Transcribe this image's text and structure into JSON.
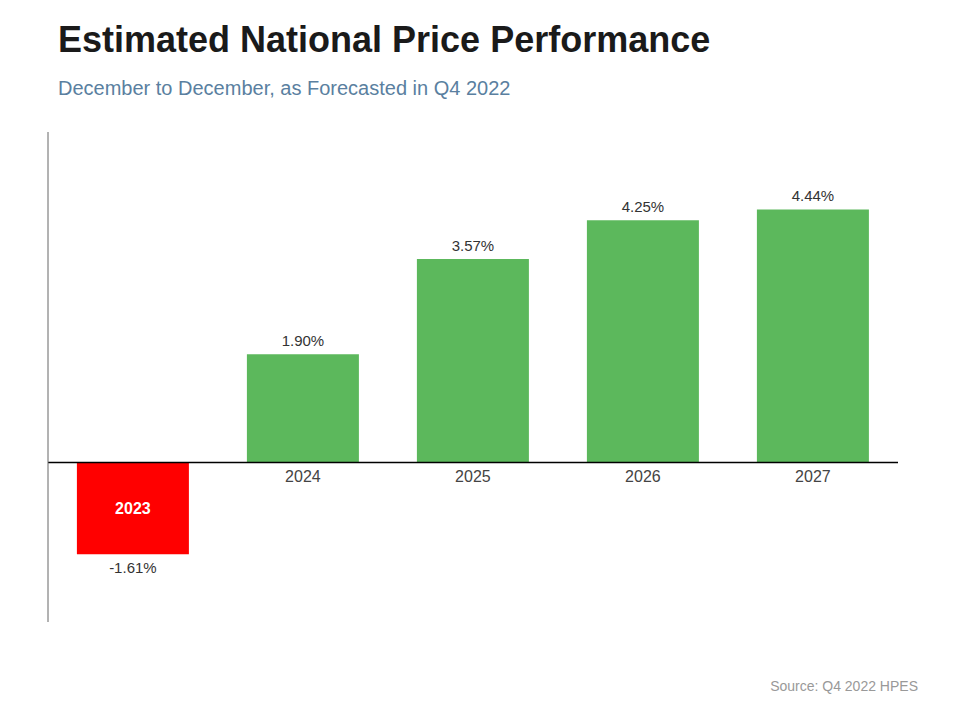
{
  "chart_data": {
    "type": "bar",
    "title": "Estimated National Price Performance",
    "subtitle": "December to December, as Forecasted in Q4 2022",
    "annotations": [
      "Source: Q4 2022 HPES"
    ],
    "categories": [
      "2023",
      "2024",
      "2025",
      "2026",
      "2027"
    ],
    "values": [
      -1.61,
      1.9,
      3.57,
      4.25,
      4.44
    ],
    "value_labels": [
      "-1.61%",
      "1.90%",
      "3.57%",
      "4.25%",
      "4.44%"
    ],
    "colors": [
      "#ff0000",
      "#5cb85c",
      "#5cb85c",
      "#5cb85c",
      "#5cb85c"
    ],
    "ylim": [
      -2.8,
      5.8
    ],
    "data_labels": true,
    "tick_labels": "x"
  }
}
